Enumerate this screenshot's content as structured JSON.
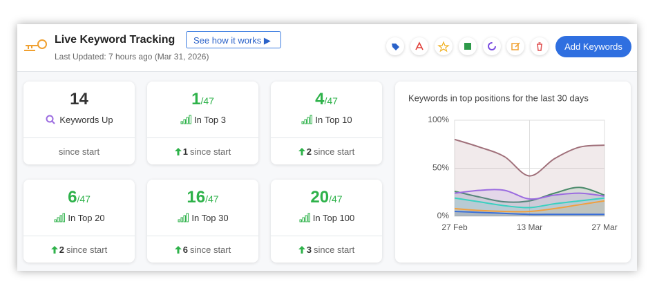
{
  "header": {
    "title": "Live Keyword Tracking",
    "help_button": "See how it works",
    "last_updated": "Last Updated: 7 hours ago (Mar 31, 2026)",
    "add_button": "Add Keywords"
  },
  "cards": [
    {
      "value": 14,
      "label": "Keywords Up",
      "footer": "since start"
    },
    {
      "value": 1,
      "total": "/47",
      "label": "In Top 3",
      "change": 1,
      "footer": "since start"
    },
    {
      "value": 4,
      "total": "/47",
      "label": "In Top 10",
      "change": 2,
      "footer": "since start"
    },
    {
      "value": 6,
      "total": "/47",
      "label": "In Top 20",
      "change": 2,
      "footer": "since start"
    },
    {
      "value": 16,
      "total": "/47",
      "label": "In Top 30",
      "change": 6,
      "footer": "since start"
    },
    {
      "value": 20,
      "total": "/47",
      "label": "In Top 100",
      "change": 3,
      "footer": "since start"
    }
  ],
  "chart_data": {
    "type": "area",
    "title": "Keywords in top positions for the last 30 days",
    "x": [
      "27 Feb",
      null,
      null,
      "13 Mar",
      null,
      null,
      "27 Mar"
    ],
    "ylim": [
      0,
      100
    ],
    "yticks": [
      {
        "value": 0,
        "label": "0%"
      },
      {
        "value": 50,
        "label": "50%"
      },
      {
        "value": 100,
        "label": "100%"
      }
    ],
    "grid": true,
    "series": [
      {
        "color": "#a0707a",
        "values": [
          80,
          72,
          62,
          42,
          60,
          72,
          74
        ]
      },
      {
        "color": "#4a8a6a",
        "values": [
          26,
          20,
          15,
          16,
          24,
          30,
          22
        ]
      },
      {
        "color": "#9b6be0",
        "values": [
          24,
          27,
          27,
          18,
          22,
          24,
          21
        ]
      },
      {
        "color": "#3ad0c0",
        "values": [
          19,
          15,
          11,
          9,
          13,
          16,
          19
        ]
      },
      {
        "color": "#f0a040",
        "values": [
          8,
          6,
          5,
          5,
          8,
          12,
          16
        ]
      },
      {
        "color": "#3a6fd8",
        "values": [
          5,
          4,
          3,
          2,
          2,
          2,
          2
        ]
      }
    ]
  }
}
